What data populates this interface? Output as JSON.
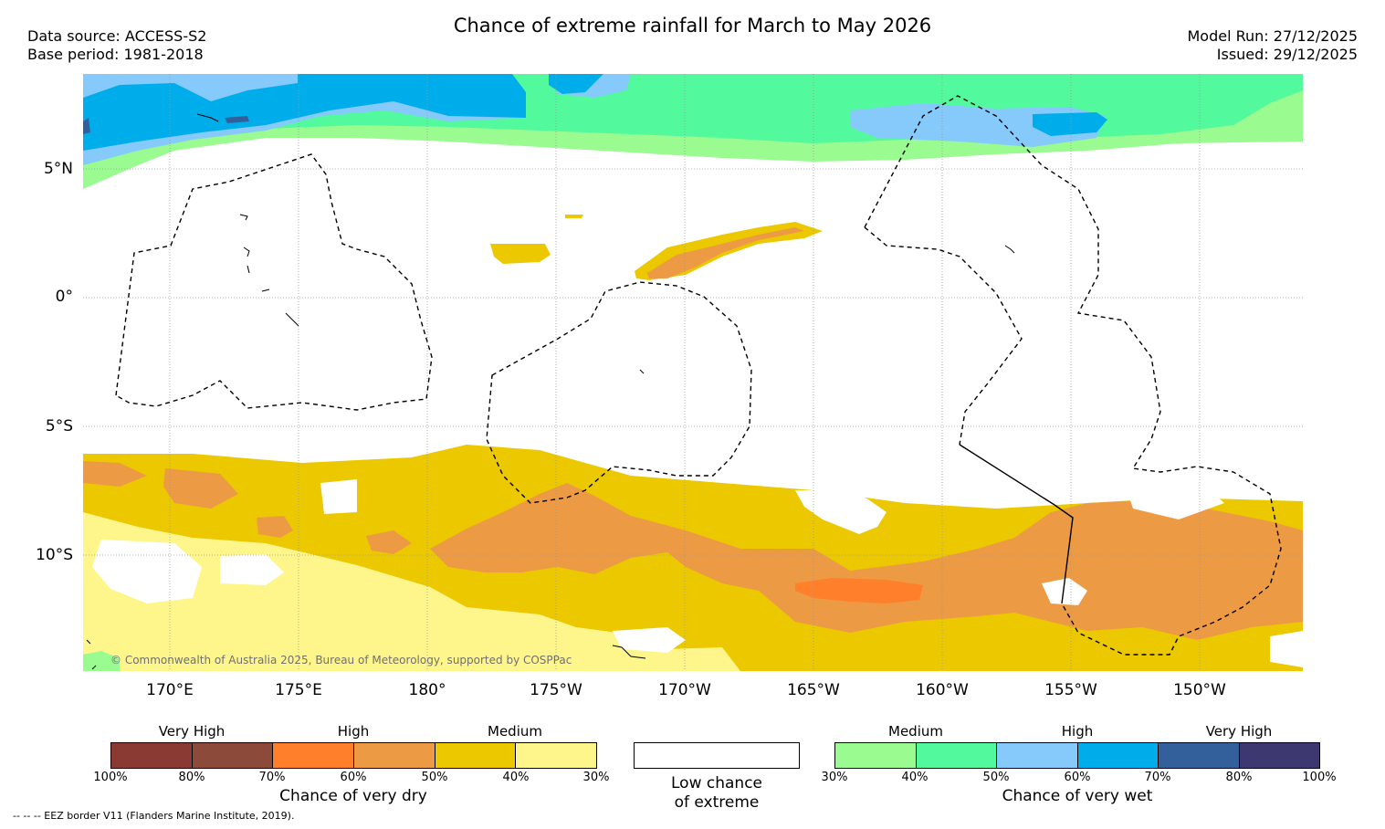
{
  "header": {
    "title": "Chance of extreme rainfall for March to May 2026",
    "data_source": "Data source: ACCESS-S2",
    "base_period": "Base period: 1981-2018",
    "model_run": "Model Run: 27/12/2025",
    "issued": "Issued: 29/12/2025"
  },
  "map": {
    "latitude_labels": [
      "5°N",
      "0°",
      "5°S",
      "10°S"
    ],
    "longitude_labels": [
      "170°E",
      "175°E",
      "180°",
      "175°W",
      "170°W",
      "165°W",
      "160°W",
      "155°W",
      "150°W"
    ],
    "copyright": "© Commonwealth of Australia 2025, Bureau of Meteorology, supported by COSPPac",
    "colors": {
      "dry_very_high_1": "#8b3a33",
      "dry_very_high_2": "#8b4a3a",
      "dry_high_1": "#ff7f2a",
      "dry_high_2": "#ed9a45",
      "dry_medium_1": "#ebc800",
      "dry_medium_2": "#fef68b",
      "low": "#ffffff",
      "wet_medium_1": "#99fb90",
      "wet_medium_2": "#53f99d",
      "wet_high_1": "#86c9fb",
      "wet_high_2": "#00adeb",
      "wet_very_high_1": "#335f9b",
      "wet_very_high_2": "#3d3870"
    }
  },
  "legend": {
    "dry": {
      "groups": [
        "Very High",
        "High",
        "Medium"
      ],
      "ticks": [
        "100%",
        "80%",
        "70%",
        "60%",
        "50%",
        "40%",
        "30%"
      ],
      "title": "Chance of very dry"
    },
    "low": {
      "title_line1": "Low chance",
      "title_line2": "of extreme"
    },
    "wet": {
      "groups": [
        "Medium",
        "High",
        "Very High"
      ],
      "ticks": [
        "30%",
        "40%",
        "50%",
        "60%",
        "70%",
        "80%",
        "100%"
      ],
      "title": "Chance of very wet"
    }
  },
  "footnote": "-- -- -- EEZ border V11 (Flanders Marine Institute, 2019)."
}
